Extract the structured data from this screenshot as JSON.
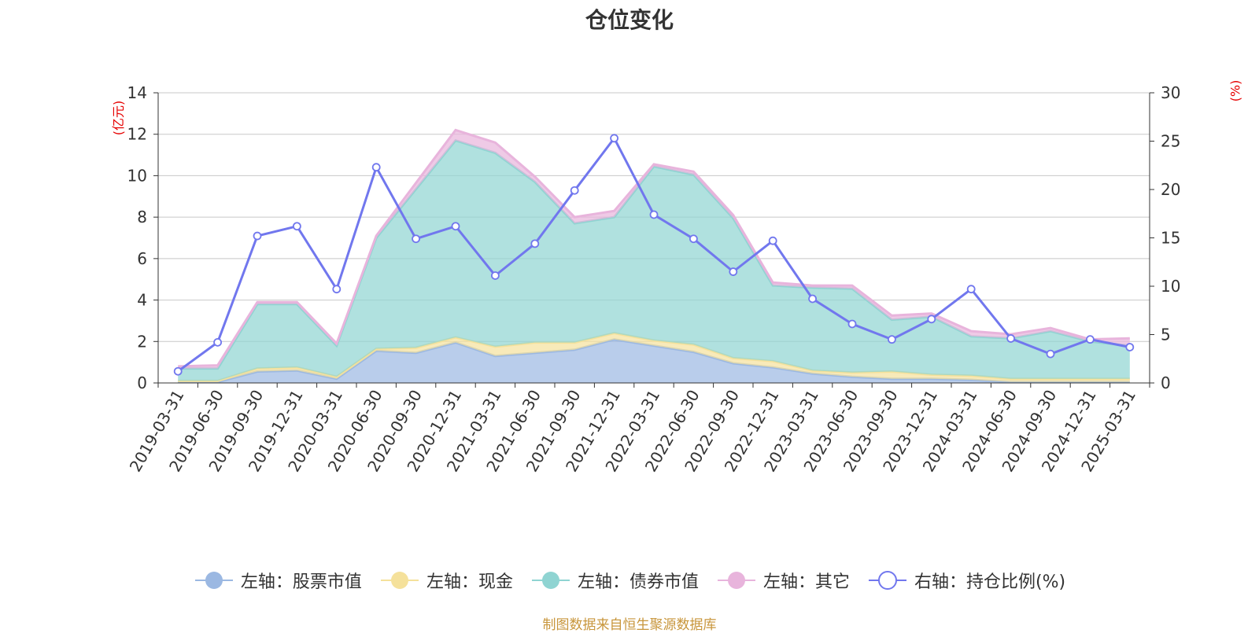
{
  "chart_data": {
    "type": "area",
    "title": "仓位变化",
    "left_axis_unit": "(亿元)",
    "right_axis_unit": "(%)",
    "categories": [
      "2019-03-31",
      "2019-06-30",
      "2019-09-30",
      "2019-12-31",
      "2020-03-31",
      "2020-06-30",
      "2020-09-30",
      "2020-12-31",
      "2021-03-31",
      "2021-06-30",
      "2021-09-30",
      "2021-12-31",
      "2022-03-31",
      "2022-06-30",
      "2022-09-30",
      "2022-12-31",
      "2023-03-31",
      "2023-06-30",
      "2023-09-30",
      "2023-12-31",
      "2024-03-31",
      "2024-06-30",
      "2024-09-30",
      "2024-12-31",
      "2025-03-31"
    ],
    "left_axis": {
      "ylim": [
        0,
        14
      ],
      "ticks": [
        0,
        2,
        4,
        6,
        8,
        10,
        12,
        14
      ]
    },
    "right_axis": {
      "ylim": [
        0,
        30
      ],
      "ticks": [
        0,
        5,
        10,
        15,
        20,
        25,
        30
      ]
    },
    "series": [
      {
        "name": "左轴：股票市值",
        "axis": "left",
        "type": "area-stacked",
        "color": "#9bb8e2",
        "values": [
          0.05,
          0.05,
          0.55,
          0.6,
          0.2,
          1.55,
          1.45,
          1.95,
          1.3,
          1.45,
          1.6,
          2.1,
          1.8,
          1.5,
          0.95,
          0.75,
          0.45,
          0.3,
          0.2,
          0.2,
          0.15,
          0.05,
          0.05,
          0.05,
          0.05
        ]
      },
      {
        "name": "左轴：现金",
        "axis": "left",
        "type": "area-stacked",
        "color": "#f5e19b",
        "values": [
          0.05,
          0.05,
          0.15,
          0.15,
          0.1,
          0.1,
          0.25,
          0.25,
          0.45,
          0.5,
          0.35,
          0.3,
          0.25,
          0.35,
          0.25,
          0.3,
          0.15,
          0.2,
          0.35,
          0.2,
          0.2,
          0.15,
          0.15,
          0.15,
          0.15
        ]
      },
      {
        "name": "左轴：债券市值",
        "axis": "left",
        "type": "area-stacked",
        "color": "#8fd4d2",
        "values": [
          0.6,
          0.6,
          3.1,
          3.05,
          1.5,
          5.35,
          7.65,
          9.5,
          9.35,
          7.75,
          5.75,
          5.6,
          8.4,
          8.2,
          6.75,
          3.65,
          4.0,
          4.05,
          2.5,
          2.8,
          1.9,
          1.95,
          2.3,
          1.8,
          1.6
        ]
      },
      {
        "name": "左轴：其它",
        "axis": "left",
        "type": "area-stacked",
        "color": "#e8b4dc",
        "values": [
          0.1,
          0.15,
          0.1,
          0.1,
          0.1,
          0.1,
          0.3,
          0.5,
          0.5,
          0.25,
          0.3,
          0.3,
          0.1,
          0.15,
          0.15,
          0.15,
          0.1,
          0.15,
          0.2,
          0.15,
          0.25,
          0.2,
          0.15,
          0.1,
          0.35
        ]
      },
      {
        "name": "右轴：持仓比例(%)",
        "axis": "right",
        "type": "line",
        "color": "#7177ee",
        "values": [
          1.2,
          4.2,
          15.2,
          16.2,
          9.7,
          22.3,
          14.9,
          16.2,
          11.1,
          14.4,
          19.9,
          25.3,
          17.4,
          14.9,
          11.5,
          14.7,
          8.7,
          6.1,
          4.5,
          6.6,
          9.7,
          4.6,
          3.0,
          4.5,
          3.7
        ]
      }
    ],
    "legend_position": "bottom-center",
    "grid": true
  },
  "source_note": "制图数据来自恒生聚源数据库"
}
